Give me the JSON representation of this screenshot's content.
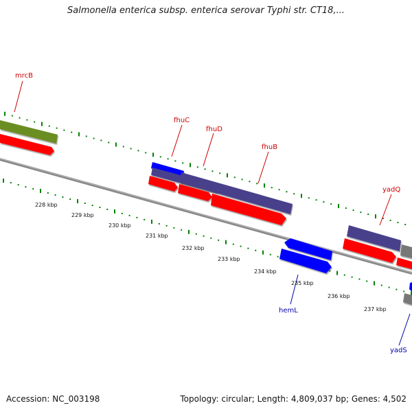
{
  "title": "Salmonella enterica subsp. enterica serovar Typhi str. CT18,...",
  "accession": "Accession: NC_003198",
  "summary": "Topology: circular; Length: 4,809,037 bp; Genes: 4,502",
  "colors": {
    "cds": "#ff0000",
    "gene_forward": "#4a3f8c",
    "gene_reverse": "#0000ff",
    "rna": "#6b8e23",
    "other": "#777777",
    "label_forward": "#cc0000",
    "label_reverse": "#0000aa",
    "ticks": "#008000",
    "backbone": "#888888"
  },
  "tick_labels": [
    "228 kbp",
    "229 kbp",
    "230 kbp",
    "231 kbp",
    "232 kbp",
    "233 kbp",
    "234 kbp",
    "235 kbp",
    "236 kbp",
    "237 kbp"
  ],
  "gene_labels": [
    "mrcB",
    "fhuC",
    "fhuD",
    "fhuB",
    "yadQ",
    "hemL",
    "yadS"
  ]
}
